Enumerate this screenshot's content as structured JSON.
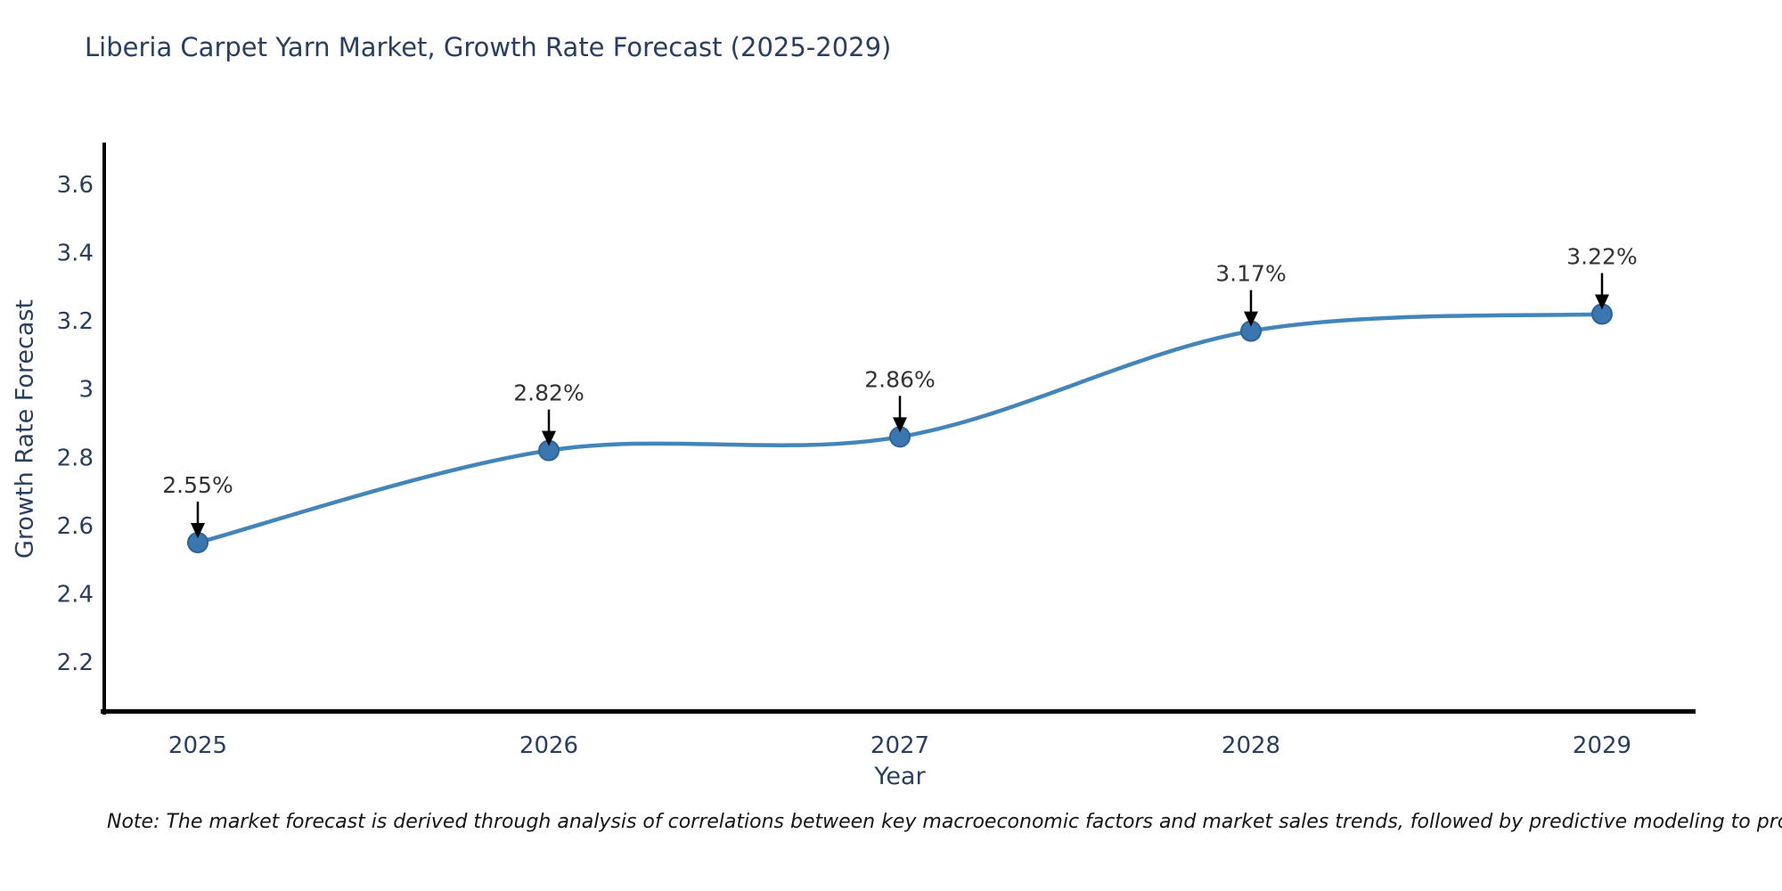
{
  "title": "Liberia Carpet Yarn Market, Growth Rate Forecast (2025-2029)",
  "note": "Note: The market forecast is derived through analysis of correlations between key macroeconomic factors and market sales trends, followed by predictive modeling to project future sales",
  "chart_data": {
    "type": "line",
    "title": "Liberia Carpet Yarn Market, Growth Rate Forecast (2025-2029)",
    "categories": [
      "2025",
      "2026",
      "2027",
      "2028",
      "2029"
    ],
    "values": [
      2.55,
      2.82,
      2.86,
      3.17,
      3.22
    ],
    "point_labels": [
      "2.55%",
      "2.82%",
      "2.86%",
      "3.17%",
      "3.22%"
    ],
    "xlabel": "Year",
    "ylabel": "Growth Rate Forecast",
    "ylim": [
      2.09,
      3.72
    ],
    "yticks": [
      2.2,
      2.4,
      2.6,
      2.8,
      3,
      3.2,
      3.4,
      3.6
    ],
    "ytick_labels": [
      "2.2",
      "2.4",
      "2.6",
      "2.8",
      "3",
      "3.2",
      "3.4",
      "3.6"
    ],
    "line_shape": "spline",
    "grid": false,
    "legend": "none",
    "colors": {
      "line": "#4285bb",
      "marker_fill": "#3a76b0",
      "marker_edge": "#2f6398",
      "axis_line": "#000000",
      "tick_text": "#2a3f5f",
      "annotation_text": "#333333",
      "annotation_arrow": "#000000"
    }
  }
}
